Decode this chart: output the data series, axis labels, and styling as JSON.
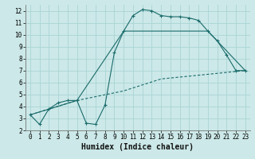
{
  "title": "",
  "xlabel": "Humidex (Indice chaleur)",
  "bg_color": "#cce8e8",
  "line_color": "#1a6b6b",
  "xlim": [
    -0.5,
    23.5
  ],
  "ylim": [
    2,
    12.5
  ],
  "xticks": [
    0,
    1,
    2,
    3,
    4,
    5,
    6,
    7,
    8,
    9,
    10,
    11,
    12,
    13,
    14,
    15,
    16,
    17,
    18,
    19,
    20,
    21,
    22,
    23
  ],
  "yticks": [
    2,
    3,
    4,
    5,
    6,
    7,
    8,
    9,
    10,
    11,
    12
  ],
  "line1_x": [
    0,
    1,
    2,
    3,
    4,
    5,
    6,
    7,
    8,
    9,
    10,
    11,
    12,
    13,
    14,
    15,
    16,
    17,
    18,
    19,
    20,
    21,
    22,
    23
  ],
  "line1_y": [
    3.3,
    2.5,
    3.8,
    4.3,
    4.5,
    4.5,
    2.6,
    2.5,
    4.1,
    8.5,
    10.3,
    11.6,
    12.1,
    12.0,
    11.6,
    11.5,
    11.5,
    11.4,
    11.2,
    10.3,
    9.5,
    8.3,
    7.0,
    7.0
  ],
  "line2_x": [
    0,
    5,
    10,
    19,
    23
  ],
  "line2_y": [
    3.3,
    4.5,
    10.3,
    10.3,
    7.0
  ],
  "line3_x": [
    0,
    5,
    10,
    14,
    23
  ],
  "line3_y": [
    3.3,
    4.5,
    5.3,
    6.3,
    7.0
  ],
  "grid_color": "#aad4d4",
  "tick_fontsize": 5.5,
  "xlabel_fontsize": 7.0
}
